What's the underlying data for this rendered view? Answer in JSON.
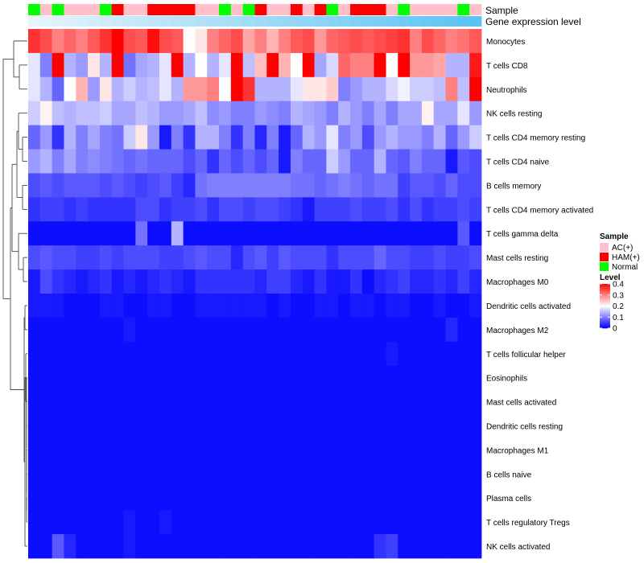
{
  "chart_data": {
    "type": "heatmap",
    "annotation_labels": {
      "sample": "Sample",
      "expression": "Gene expression level"
    },
    "legend": {
      "sample_title": "Sample",
      "sample_entries": [
        {
          "label": "AC(+)",
          "color": "#ffc0cb"
        },
        {
          "label": "HAM(+)",
          "color": "#ff0000"
        },
        {
          "label": "Normal",
          "color": "#00ff00"
        }
      ],
      "level_title": "Level",
      "level_ticks": [
        "0.4",
        "0.3",
        "0.2",
        "0.1",
        "0"
      ],
      "level_tick_values": [
        0.4,
        0.3,
        0.2,
        0.1,
        0
      ],
      "color_low": "#0000ff",
      "color_mid": "#ffffff",
      "color_high": "#ff0000",
      "value_range": [
        0,
        0.4
      ]
    },
    "sample_groups": [
      "Normal",
      "AC(+)",
      "Normal",
      "AC(+)",
      "AC(+)",
      "AC(+)",
      "Normal",
      "HAM(+)",
      "AC(+)",
      "AC(+)",
      "HAM(+)",
      "HAM(+)",
      "HAM(+)",
      "HAM(+)",
      "AC(+)",
      "AC(+)",
      "Normal",
      "AC(+)",
      "Normal",
      "HAM(+)",
      "AC(+)",
      "AC(+)",
      "HAM(+)",
      "AC(+)",
      "HAM(+)",
      "Normal",
      "AC(+)",
      "HAM(+)",
      "HAM(+)",
      "HAM(+)",
      "AC(+)",
      "Normal",
      "AC(+)",
      "AC(+)",
      "AC(+)",
      "AC(+)",
      "Normal",
      "AC(+)"
    ],
    "expression_bar": {
      "start_color": "#e6f4fb",
      "end_color": "#5bc3f3"
    },
    "rows": [
      {
        "name": "Monocytes",
        "values": [
          0.36,
          0.34,
          0.3,
          0.32,
          0.3,
          0.33,
          0.36,
          0.4,
          0.34,
          0.33,
          0.39,
          0.34,
          0.33,
          0.2,
          0.22,
          0.3,
          0.32,
          0.34,
          0.27,
          0.3,
          0.26,
          0.3,
          0.33,
          0.34,
          0.28,
          0.32,
          0.33,
          0.34,
          0.33,
          0.34,
          0.35,
          0.36,
          0.3,
          0.34,
          0.32,
          0.3,
          0.31,
          0.33
        ]
      },
      {
        "name": "T cells CD8",
        "values": [
          0.18,
          0.1,
          0.4,
          0.14,
          0.12,
          0.22,
          0.14,
          0.4,
          0.09,
          0.13,
          0.14,
          0.18,
          0.4,
          0.14,
          0.2,
          0.14,
          0.18,
          0.4,
          0.15,
          0.25,
          0.4,
          0.26,
          0.2,
          0.4,
          0.13,
          0.17,
          0.32,
          0.3,
          0.3,
          0.4,
          0.2,
          0.4,
          0.28,
          0.28,
          0.27,
          0.14,
          0.14,
          0.38
        ]
      },
      {
        "name": "Neutrophils",
        "values": [
          0.18,
          0.14,
          0.08,
          0.2,
          0.26,
          0.12,
          0.22,
          0.14,
          0.16,
          0.14,
          0.15,
          0.18,
          0.14,
          0.28,
          0.28,
          0.3,
          0.2,
          0.4,
          0.36,
          0.14,
          0.14,
          0.14,
          0.18,
          0.22,
          0.22,
          0.24,
          0.1,
          0.12,
          0.14,
          0.14,
          0.17,
          0.19,
          0.16,
          0.16,
          0.15,
          0.3,
          0.15,
          0.4
        ]
      },
      {
        "name": "NK cells resting",
        "values": [
          0.16,
          0.21,
          0.15,
          0.14,
          0.15,
          0.15,
          0.16,
          0.13,
          0.13,
          0.15,
          0.14,
          0.12,
          0.12,
          0.13,
          0.15,
          0.11,
          0.12,
          0.1,
          0.1,
          0.12,
          0.11,
          0.1,
          0.14,
          0.13,
          0.12,
          0.1,
          0.14,
          0.12,
          0.1,
          0.13,
          0.1,
          0.13,
          0.13,
          0.21,
          0.13,
          0.13,
          0.18,
          0.12
        ]
      },
      {
        "name": "T cells CD4 memory resting",
        "values": [
          0.08,
          0.12,
          0.04,
          0.14,
          0.1,
          0.13,
          0.1,
          0.09,
          0.16,
          0.22,
          0.12,
          0.02,
          0.1,
          0.04,
          0.14,
          0.14,
          0.1,
          0.04,
          0.1,
          0.03,
          0.1,
          0.02,
          0.08,
          0.14,
          0.12,
          0.18,
          0.1,
          0.12,
          0.06,
          0.12,
          0.14,
          0.12,
          0.12,
          0.1,
          0.14,
          0.08,
          0.12,
          0.16
        ]
      },
      {
        "name": "T cells CD4 naive",
        "values": [
          0.12,
          0.14,
          0.1,
          0.13,
          0.1,
          0.11,
          0.1,
          0.09,
          0.08,
          0.09,
          0.08,
          0.08,
          0.08,
          0.06,
          0.08,
          0.04,
          0.08,
          0.06,
          0.08,
          0.06,
          0.08,
          0.02,
          0.1,
          0.08,
          0.08,
          0.16,
          0.12,
          0.08,
          0.08,
          0.14,
          0.08,
          0.07,
          0.1,
          0.08,
          0.08,
          0.02,
          0.07,
          0.06
        ]
      },
      {
        "name": "B cells memory",
        "values": [
          0.06,
          0.07,
          0.06,
          0.07,
          0.07,
          0.07,
          0.06,
          0.07,
          0.06,
          0.05,
          0.06,
          0.07,
          0.05,
          0.03,
          0.09,
          0.1,
          0.1,
          0.1,
          0.1,
          0.1,
          0.1,
          0.1,
          0.09,
          0.09,
          0.08,
          0.09,
          0.1,
          0.09,
          0.08,
          0.09,
          0.09,
          0.05,
          0.07,
          0.07,
          0.06,
          0.08,
          0.06,
          0.06
        ]
      },
      {
        "name": "T cells CD4 memory activated",
        "values": [
          0.04,
          0.05,
          0.05,
          0.04,
          0.05,
          0.04,
          0.04,
          0.04,
          0.04,
          0.06,
          0.06,
          0.04,
          0.05,
          0.05,
          0.06,
          0.04,
          0.06,
          0.06,
          0.05,
          0.06,
          0.06,
          0.05,
          0.04,
          0.02,
          0.05,
          0.05,
          0.05,
          0.06,
          0.05,
          0.05,
          0.06,
          0.04,
          0.06,
          0.04,
          0.05,
          0.05,
          0.06,
          0.05
        ]
      },
      {
        "name": "T cells gamma delta",
        "values": [
          0.01,
          0.01,
          0.01,
          0.01,
          0.01,
          0.01,
          0.01,
          0.01,
          0.01,
          0.09,
          0.01,
          0.01,
          0.14,
          0.01,
          0.01,
          0.01,
          0.01,
          0.01,
          0.01,
          0.01,
          0.01,
          0.01,
          0.01,
          0.01,
          0.01,
          0.01,
          0.01,
          0.01,
          0.01,
          0.01,
          0.01,
          0.01,
          0.01,
          0.01,
          0.01,
          0.01,
          0.07,
          0.01
        ]
      },
      {
        "name": "Mast cells resting",
        "values": [
          0.06,
          0.07,
          0.06,
          0.06,
          0.05,
          0.05,
          0.06,
          0.05,
          0.06,
          0.06,
          0.06,
          0.05,
          0.05,
          0.06,
          0.07,
          0.06,
          0.06,
          0.03,
          0.06,
          0.07,
          0.05,
          0.07,
          0.06,
          0.06,
          0.06,
          0.04,
          0.06,
          0.06,
          0.06,
          0.08,
          0.06,
          0.06,
          0.05,
          0.05,
          0.06,
          0.05,
          0.05,
          0.06
        ]
      },
      {
        "name": "Macrophages M0",
        "values": [
          0.02,
          0.06,
          0.04,
          0.03,
          0.02,
          0.03,
          0.04,
          0.02,
          0.03,
          0.02,
          0.03,
          0.04,
          0.03,
          0.02,
          0.04,
          0.04,
          0.04,
          0.04,
          0.04,
          0.03,
          0.05,
          0.05,
          0.03,
          0.02,
          0.04,
          0.02,
          0.02,
          0.04,
          0.01,
          0.03,
          0.04,
          0.05,
          0.03,
          0.03,
          0.04,
          0.03,
          0.05,
          0.03
        ]
      },
      {
        "name": "Dendritic cells activated",
        "values": [
          0.02,
          0.02,
          0.02,
          0.01,
          0.01,
          0.01,
          0.02,
          0.02,
          0.01,
          0.01,
          0.02,
          0.02,
          0.01,
          0.01,
          0.02,
          0.02,
          0.02,
          0.02,
          0.02,
          0.02,
          0.01,
          0.02,
          0.01,
          0.01,
          0.02,
          0.02,
          0.01,
          0.02,
          0.02,
          0.01,
          0.02,
          0.02,
          0.01,
          0.01,
          0.02,
          0.01,
          0.01,
          0.02
        ]
      },
      {
        "name": "Macrophages M2",
        "values": [
          0.01,
          0.01,
          0.01,
          0.01,
          0.01,
          0.01,
          0.01,
          0.01,
          0.02,
          0.01,
          0.01,
          0.01,
          0.01,
          0.01,
          0.01,
          0.01,
          0.01,
          0.01,
          0.01,
          0.01,
          0.01,
          0.01,
          0.01,
          0.01,
          0.01,
          0.01,
          0.01,
          0.01,
          0.01,
          0.01,
          0.01,
          0.01,
          0.01,
          0.01,
          0.01,
          0.03,
          0.01,
          0.01
        ]
      },
      {
        "name": "T cells follicular helper",
        "values": [
          0.01,
          0.01,
          0.01,
          0.01,
          0.01,
          0.01,
          0.01,
          0.01,
          0.01,
          0.01,
          0.01,
          0.01,
          0.01,
          0.01,
          0.01,
          0.01,
          0.01,
          0.01,
          0.01,
          0.01,
          0.01,
          0.01,
          0.01,
          0.01,
          0.01,
          0.01,
          0.01,
          0.01,
          0.01,
          0.01,
          0.02,
          0.01,
          0.01,
          0.01,
          0.01,
          0.01,
          0.01,
          0.01
        ]
      },
      {
        "name": "Eosinophils",
        "values": [
          0.01,
          0.01,
          0.01,
          0.01,
          0.01,
          0.01,
          0.01,
          0.01,
          0.01,
          0.01,
          0.01,
          0.01,
          0.01,
          0.01,
          0.01,
          0.01,
          0.01,
          0.01,
          0.01,
          0.01,
          0.01,
          0.01,
          0.01,
          0.01,
          0.01,
          0.01,
          0.01,
          0.01,
          0.01,
          0.01,
          0.01,
          0.01,
          0.01,
          0.01,
          0.01,
          0.01,
          0.01,
          0.01
        ]
      },
      {
        "name": "Mast cells activated",
        "values": [
          0.01,
          0.01,
          0.01,
          0.01,
          0.01,
          0.01,
          0.01,
          0.01,
          0.01,
          0.01,
          0.01,
          0.01,
          0.01,
          0.01,
          0.01,
          0.01,
          0.01,
          0.01,
          0.01,
          0.01,
          0.01,
          0.01,
          0.01,
          0.01,
          0.01,
          0.01,
          0.01,
          0.01,
          0.01,
          0.01,
          0.01,
          0.01,
          0.01,
          0.01,
          0.01,
          0.01,
          0.01,
          0.01
        ]
      },
      {
        "name": "Dendritic cells resting",
        "values": [
          0.01,
          0.01,
          0.01,
          0.01,
          0.01,
          0.01,
          0.01,
          0.01,
          0.01,
          0.01,
          0.01,
          0.01,
          0.01,
          0.01,
          0.01,
          0.01,
          0.01,
          0.01,
          0.01,
          0.01,
          0.01,
          0.01,
          0.01,
          0.01,
          0.01,
          0.01,
          0.01,
          0.01,
          0.01,
          0.01,
          0.01,
          0.01,
          0.01,
          0.01,
          0.01,
          0.01,
          0.01,
          0.01
        ]
      },
      {
        "name": "Macrophages M1",
        "values": [
          0.01,
          0.01,
          0.01,
          0.01,
          0.01,
          0.01,
          0.01,
          0.01,
          0.01,
          0.01,
          0.01,
          0.01,
          0.01,
          0.01,
          0.01,
          0.01,
          0.01,
          0.01,
          0.01,
          0.01,
          0.01,
          0.01,
          0.01,
          0.01,
          0.01,
          0.01,
          0.01,
          0.01,
          0.01,
          0.01,
          0.01,
          0.01,
          0.01,
          0.01,
          0.01,
          0.01,
          0.01,
          0.01
        ]
      },
      {
        "name": "B cells naive",
        "values": [
          0.01,
          0.01,
          0.01,
          0.01,
          0.01,
          0.01,
          0.01,
          0.01,
          0.01,
          0.01,
          0.01,
          0.01,
          0.01,
          0.01,
          0.01,
          0.01,
          0.01,
          0.01,
          0.01,
          0.01,
          0.01,
          0.01,
          0.01,
          0.01,
          0.01,
          0.01,
          0.01,
          0.01,
          0.01,
          0.01,
          0.01,
          0.01,
          0.01,
          0.01,
          0.01,
          0.01,
          0.01,
          0.01
        ]
      },
      {
        "name": "Plasma cells",
        "values": [
          0.01,
          0.01,
          0.01,
          0.01,
          0.01,
          0.01,
          0.01,
          0.01,
          0.01,
          0.01,
          0.01,
          0.01,
          0.01,
          0.01,
          0.01,
          0.01,
          0.01,
          0.01,
          0.01,
          0.01,
          0.01,
          0.01,
          0.01,
          0.01,
          0.01,
          0.01,
          0.01,
          0.01,
          0.01,
          0.01,
          0.01,
          0.01,
          0.01,
          0.01,
          0.01,
          0.01,
          0.01,
          0.01
        ]
      },
      {
        "name": "T cells regulatory  Tregs",
        "values": [
          0.01,
          0.01,
          0.01,
          0.01,
          0.01,
          0.01,
          0.01,
          0.01,
          0.02,
          0.01,
          0.01,
          0.02,
          0.01,
          0.01,
          0.01,
          0.01,
          0.01,
          0.01,
          0.01,
          0.01,
          0.01,
          0.01,
          0.01,
          0.01,
          0.01,
          0.01,
          0.01,
          0.01,
          0.01,
          0.01,
          0.01,
          0.01,
          0.01,
          0.01,
          0.01,
          0.01,
          0.01,
          0.01
        ]
      },
      {
        "name": "NK cells activated",
        "values": [
          0.01,
          0.01,
          0.07,
          0.03,
          0.01,
          0.01,
          0.01,
          0.01,
          0.02,
          0.01,
          0.01,
          0.01,
          0.01,
          0.01,
          0.01,
          0.01,
          0.01,
          0.01,
          0.01,
          0.01,
          0.01,
          0.01,
          0.01,
          0.01,
          0.01,
          0.01,
          0.01,
          0.01,
          0.01,
          0.04,
          0.05,
          0.01,
          0.01,
          0.01,
          0.01,
          0.01,
          0.01,
          0.01
        ]
      }
    ]
  }
}
